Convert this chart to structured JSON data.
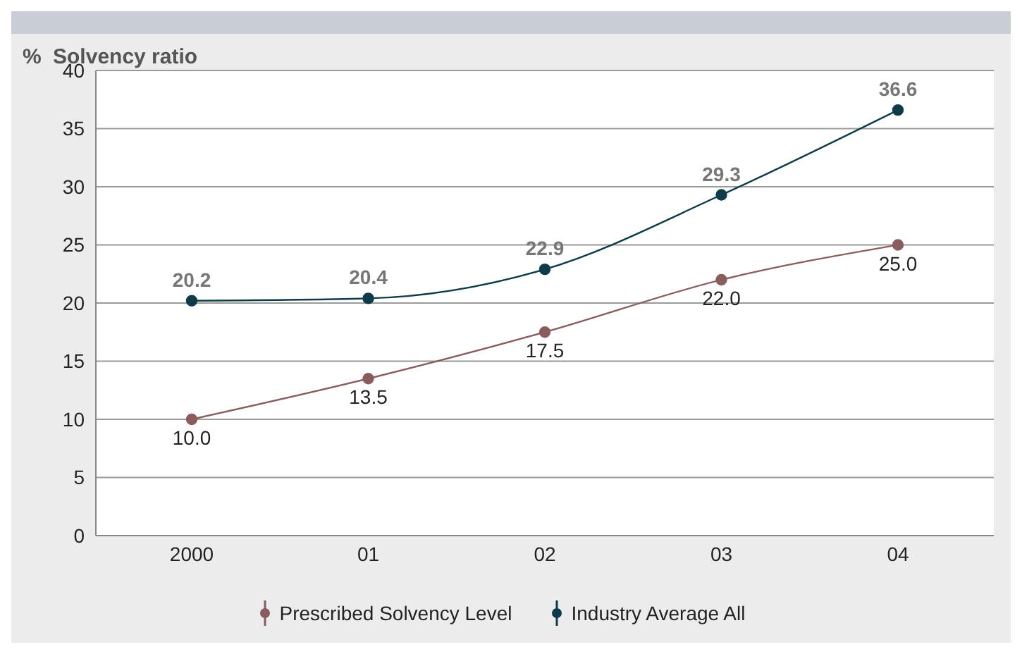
{
  "chart_data": {
    "type": "line",
    "title": "Solvency ratio",
    "ylabel": "%",
    "categories": [
      "2000",
      "01",
      "02",
      "03",
      "04"
    ],
    "series": [
      {
        "name": "Prescribed Solvency Level",
        "color": "#8a5c5c",
        "values": [
          10.0,
          13.5,
          17.5,
          22.0,
          25.0
        ],
        "value_labels": [
          "10.0",
          "13.5",
          "17.5",
          "22.0",
          "25.0"
        ]
      },
      {
        "name": "Industry Average All",
        "color": "#0d3b4a",
        "values": [
          20.2,
          20.4,
          22.9,
          29.3,
          36.6
        ],
        "value_labels": [
          "20.2",
          "20.4",
          "22.9",
          "29.3",
          "36.6"
        ]
      }
    ],
    "ylim": [
      0,
      40
    ],
    "yticks": [
      0,
      5,
      10,
      15,
      20,
      25,
      30,
      35,
      40
    ],
    "grid": "y",
    "legend": "bottom",
    "marker": "circle",
    "line_style": "solid"
  }
}
